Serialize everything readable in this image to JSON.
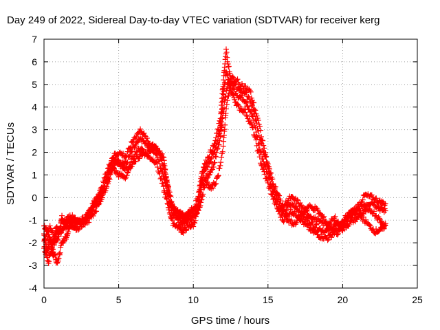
{
  "chart_data": {
    "type": "scatter",
    "title": "Day 249 of 2022, Sidereal Day-to-day VTEC variation (SDTVAR) for receiver kerg",
    "xlabel": "GPS time / hours",
    "ylabel": "SDTVAR / TECUs",
    "xlim": [
      0,
      25
    ],
    "ylim": [
      -4,
      7
    ],
    "xticks": [
      0,
      5,
      10,
      15,
      20,
      25
    ],
    "yticks": [
      -4,
      -3,
      -2,
      -1,
      0,
      1,
      2,
      3,
      4,
      5,
      6,
      7
    ],
    "grid": true,
    "marker": "plus",
    "color": "#ff0000",
    "series": [
      {
        "name": "SDTVAR",
        "curves": [
          [
            [
              0.0,
              -1.6
            ],
            [
              0.2,
              -2.4
            ],
            [
              0.4,
              -1.8
            ],
            [
              0.6,
              -2.6
            ],
            [
              0.8,
              -1.3
            ],
            [
              1.0,
              -1.6
            ],
            [
              1.2,
              -0.9
            ],
            [
              1.5,
              -1.3
            ],
            [
              1.8,
              -1.0
            ],
            [
              2.0,
              -1.2
            ],
            [
              2.5,
              -1.0
            ],
            [
              3.0,
              -0.7
            ],
            [
              3.5,
              0.0
            ],
            [
              4.0,
              0.5
            ],
            [
              4.5,
              1.5
            ],
            [
              5.0,
              1.6
            ],
            [
              5.5,
              1.5
            ],
            [
              6.0,
              2.2
            ],
            [
              6.5,
              2.6
            ],
            [
              7.0,
              2.2
            ],
            [
              7.5,
              2.0
            ],
            [
              8.0,
              1.0
            ],
            [
              8.3,
              0.1
            ],
            [
              8.6,
              -0.7
            ],
            [
              9.0,
              -0.9
            ],
            [
              9.3,
              -1.2
            ],
            [
              9.6,
              -1.0
            ],
            [
              10.0,
              -0.9
            ],
            [
              10.3,
              -0.3
            ],
            [
              10.6,
              0.9
            ],
            [
              11.0,
              1.5
            ],
            [
              11.4,
              2.0
            ],
            [
              11.8,
              3.0
            ],
            [
              12.0,
              4.5
            ],
            [
              12.2,
              5.5
            ],
            [
              12.5,
              5.0
            ],
            [
              13.0,
              4.5
            ],
            [
              13.5,
              4.3
            ],
            [
              14.0,
              3.5
            ],
            [
              14.5,
              2.0
            ],
            [
              15.0,
              1.0
            ],
            [
              15.5,
              0.0
            ],
            [
              16.0,
              -0.7
            ],
            [
              16.5,
              -0.3
            ],
            [
              17.0,
              -0.5
            ],
            [
              17.5,
              -0.9
            ],
            [
              18.0,
              -1.2
            ],
            [
              18.5,
              -1.4
            ],
            [
              19.0,
              -1.5
            ],
            [
              19.5,
              -1.2
            ],
            [
              20.0,
              -1.2
            ],
            [
              20.5,
              -0.9
            ],
            [
              21.0,
              -0.6
            ],
            [
              21.5,
              -0.3
            ],
            [
              22.0,
              -0.2
            ],
            [
              22.5,
              -0.5
            ],
            [
              22.9,
              -0.6
            ]
          ],
          [
            [
              0.0,
              -1.2
            ],
            [
              0.3,
              -1.6
            ],
            [
              0.6,
              -2.4
            ],
            [
              0.9,
              -2.9
            ],
            [
              1.2,
              -2.0
            ],
            [
              1.5,
              -1.7
            ],
            [
              1.8,
              -1.2
            ],
            [
              2.3,
              -1.4
            ],
            [
              2.8,
              -1.0
            ],
            [
              3.3,
              -0.5
            ],
            [
              3.8,
              0.0
            ],
            [
              4.2,
              0.8
            ],
            [
              4.6,
              1.3
            ],
            [
              5.0,
              1.0
            ],
            [
              5.5,
              0.9
            ],
            [
              6.0,
              1.9
            ],
            [
              6.5,
              2.2
            ],
            [
              7.0,
              1.8
            ],
            [
              7.5,
              1.6
            ],
            [
              8.0,
              0.4
            ],
            [
              8.3,
              -0.3
            ],
            [
              8.6,
              -1.1
            ],
            [
              9.0,
              -1.3
            ],
            [
              9.3,
              -1.5
            ],
            [
              9.6,
              -1.3
            ],
            [
              10.0,
              -1.2
            ],
            [
              10.3,
              -0.6
            ],
            [
              10.6,
              0.6
            ],
            [
              11.0,
              1.0
            ],
            [
              11.4,
              1.5
            ],
            [
              11.8,
              2.6
            ],
            [
              12.0,
              3.8
            ],
            [
              12.3,
              5.0
            ],
            [
              12.6,
              4.6
            ],
            [
              13.0,
              4.0
            ],
            [
              13.5,
              3.8
            ],
            [
              14.0,
              3.0
            ],
            [
              14.5,
              1.6
            ],
            [
              15.0,
              0.6
            ],
            [
              15.5,
              -0.3
            ],
            [
              16.0,
              -1.0
            ],
            [
              16.5,
              -0.6
            ],
            [
              17.0,
              -0.8
            ],
            [
              17.5,
              -1.2
            ],
            [
              18.0,
              -1.5
            ],
            [
              18.5,
              -1.7
            ],
            [
              19.0,
              -1.8
            ],
            [
              19.5,
              -1.5
            ],
            [
              20.0,
              -1.1
            ],
            [
              20.5,
              -0.7
            ],
            [
              21.0,
              -0.4
            ],
            [
              21.5,
              0.1
            ],
            [
              22.0,
              0.0
            ],
            [
              22.5,
              -0.2
            ],
            [
              22.9,
              -0.3
            ]
          ],
          [
            [
              0.0,
              -2.2
            ],
            [
              0.3,
              -2.8
            ],
            [
              0.6,
              -2.0
            ],
            [
              0.9,
              -1.5
            ],
            [
              1.2,
              -1.1
            ],
            [
              1.5,
              -1.0
            ],
            [
              1.8,
              -0.8
            ],
            [
              2.3,
              -1.1
            ],
            [
              2.8,
              -0.9
            ],
            [
              3.3,
              -0.3
            ],
            [
              3.8,
              0.3
            ],
            [
              4.2,
              1.1
            ],
            [
              4.6,
              1.8
            ],
            [
              5.0,
              2.0
            ],
            [
              5.5,
              1.8
            ],
            [
              6.0,
              2.6
            ],
            [
              6.5,
              3.0
            ],
            [
              7.0,
              2.4
            ],
            [
              7.5,
              2.3
            ],
            [
              8.0,
              1.4
            ],
            [
              8.3,
              0.5
            ],
            [
              8.6,
              -0.4
            ],
            [
              9.0,
              -0.7
            ],
            [
              9.3,
              -1.0
            ],
            [
              9.6,
              -0.8
            ],
            [
              10.0,
              -0.6
            ],
            [
              10.3,
              0.0
            ],
            [
              10.6,
              1.2
            ],
            [
              11.0,
              1.8
            ],
            [
              11.4,
              2.3
            ],
            [
              11.8,
              3.4
            ],
            [
              12.0,
              5.0
            ],
            [
              12.2,
              6.5
            ],
            [
              12.5,
              5.2
            ],
            [
              13.0,
              4.8
            ],
            [
              13.5,
              4.6
            ],
            [
              14.0,
              4.0
            ],
            [
              14.5,
              2.5
            ],
            [
              15.0,
              1.4
            ],
            [
              15.5,
              0.4
            ],
            [
              16.0,
              -0.4
            ],
            [
              16.5,
              0.0
            ],
            [
              17.0,
              -0.2
            ],
            [
              17.5,
              -0.6
            ],
            [
              18.0,
              -0.9
            ],
            [
              18.5,
              -1.1
            ],
            [
              19.0,
              -1.2
            ],
            [
              19.5,
              -0.9
            ],
            [
              20.0,
              -1.4
            ],
            [
              20.5,
              -1.1
            ],
            [
              21.0,
              -0.9
            ],
            [
              21.5,
              -0.6
            ],
            [
              22.0,
              -0.6
            ],
            [
              22.5,
              -1.0
            ],
            [
              22.9,
              -1.3
            ]
          ],
          [
            [
              0.0,
              -1.9
            ],
            [
              0.4,
              -1.3
            ],
            [
              0.8,
              -1.9
            ],
            [
              1.2,
              -1.4
            ],
            [
              1.6,
              -1.1
            ],
            [
              2.0,
              -0.9
            ],
            [
              2.5,
              -1.2
            ],
            [
              3.0,
              -1.0
            ],
            [
              3.5,
              -0.5
            ],
            [
              4.0,
              0.2
            ],
            [
              4.4,
              0.9
            ],
            [
              4.8,
              1.7
            ],
            [
              5.2,
              1.4
            ],
            [
              5.6,
              1.2
            ],
            [
              6.0,
              1.6
            ],
            [
              6.5,
              1.9
            ],
            [
              7.0,
              2.0
            ],
            [
              7.5,
              2.2
            ],
            [
              8.0,
              1.8
            ],
            [
              8.2,
              0.8
            ],
            [
              8.5,
              -0.3
            ],
            [
              8.8,
              -0.6
            ],
            [
              9.2,
              -0.7
            ],
            [
              9.5,
              -0.9
            ],
            [
              9.8,
              -0.5
            ],
            [
              10.2,
              -0.8
            ],
            [
              10.5,
              -0.2
            ],
            [
              10.8,
              0.7
            ],
            [
              11.2,
              0.4
            ],
            [
              11.6,
              0.8
            ],
            [
              12.0,
              2.2
            ],
            [
              12.2,
              4.0
            ],
            [
              12.6,
              5.3
            ],
            [
              13.2,
              5.0
            ],
            [
              13.8,
              4.7
            ],
            [
              14.3,
              3.5
            ],
            [
              14.8,
              2.0
            ],
            [
              15.2,
              0.8
            ],
            [
              15.7,
              -0.2
            ],
            [
              16.2,
              -0.9
            ],
            [
              16.7,
              -1.2
            ],
            [
              17.2,
              -0.8
            ],
            [
              17.7,
              -0.4
            ],
            [
              18.2,
              -0.5
            ],
            [
              18.7,
              -0.9
            ],
            [
              19.2,
              -1.3
            ],
            [
              19.7,
              -1.6
            ],
            [
              20.2,
              -0.9
            ],
            [
              20.7,
              -0.6
            ],
            [
              21.2,
              -0.8
            ],
            [
              21.7,
              -1.2
            ],
            [
              22.2,
              -1.5
            ],
            [
              22.6,
              -1.4
            ],
            [
              22.9,
              -1.2
            ]
          ]
        ]
      }
    ]
  }
}
